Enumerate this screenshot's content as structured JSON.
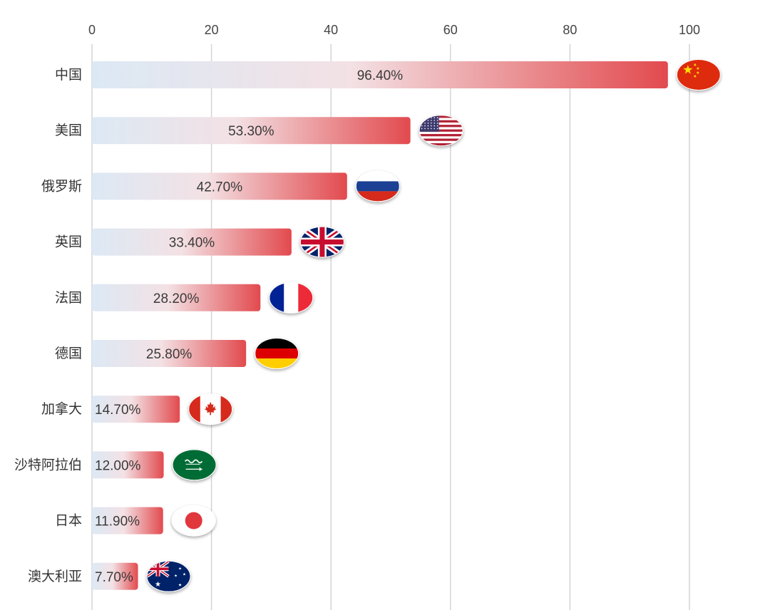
{
  "chart_data": {
    "type": "bar",
    "orientation": "horizontal",
    "categories": [
      "中国",
      "美国",
      "俄罗斯",
      "英国",
      "法国",
      "德国",
      "加拿大",
      "沙特阿拉伯",
      "日本",
      "澳大利亚"
    ],
    "values": [
      96.4,
      53.3,
      42.7,
      33.4,
      28.2,
      25.8,
      14.7,
      12.0,
      11.9,
      7.7
    ],
    "value_labels": [
      "96.40%",
      "53.30%",
      "42.70%",
      "33.40%",
      "28.20%",
      "25.80%",
      "14.70%",
      "12.00%",
      "11.90%",
      "7.70%"
    ],
    "flags": [
      "china-flag",
      "usa-flag",
      "russia-flag",
      "uk-flag",
      "france-flag",
      "germany-flag",
      "canada-flag",
      "saudi-arabia-flag",
      "japan-flag",
      "australia-flag"
    ],
    "x_ticks": [
      0,
      20,
      40,
      60,
      80,
      100
    ],
    "xlim": [
      0,
      100
    ],
    "title": "",
    "xlabel": "",
    "ylabel": "",
    "grid": "vertical",
    "colors": {
      "bar_start": "#dce9f5",
      "bar_mid": "#f3e1e4",
      "bar_end": "#e24a4e",
      "grid": "#d4d4d4",
      "text": "#333333"
    }
  }
}
